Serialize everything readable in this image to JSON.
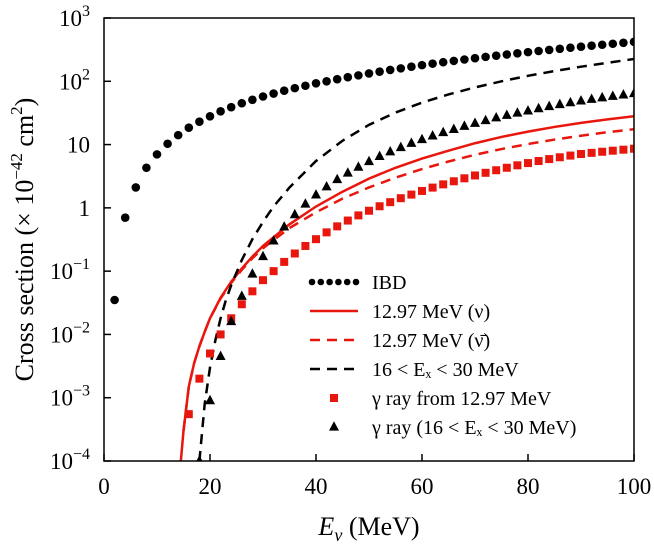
{
  "chart_data": {
    "type": "scatter",
    "xlabel": {
      "var": "E",
      "sub": "ν",
      "unit": " (MeV)"
    },
    "ylabel": {
      "pre": "Cross section (× 10",
      "exp": "−42",
      "mid": " cm",
      "exp2": "2",
      "post": ")"
    },
    "xlim": [
      0,
      100
    ],
    "ylim": [
      0.0001,
      1000
    ],
    "yscale": "log",
    "x_ticks": [
      "0",
      "20",
      "40",
      "60",
      "80",
      "100"
    ],
    "y_ticks": [
      {
        "base": "10",
        "exp": "−4"
      },
      {
        "base": "10",
        "exp": "−3"
      },
      {
        "base": "10",
        "exp": "−2"
      },
      {
        "base": "10",
        "exp": "−1"
      },
      {
        "text": "1"
      },
      {
        "text": "10"
      },
      {
        "base": "10",
        "exp": "2"
      },
      {
        "base": "10",
        "exp": "3"
      }
    ],
    "grid": false,
    "legend_position": "bottom-right",
    "series": [
      {
        "name": "IBD",
        "style": "dots",
        "color": "#000000",
        "x": [
          2,
          4,
          6,
          8,
          10,
          12,
          14,
          16,
          18,
          20,
          22,
          24,
          26,
          28,
          30,
          32,
          34,
          36,
          38,
          40,
          42,
          44,
          46,
          48,
          50,
          52,
          54,
          56,
          58,
          60,
          62,
          64,
          66,
          68,
          70,
          72,
          74,
          76,
          78,
          80,
          82,
          84,
          86,
          88,
          90,
          92,
          94,
          96,
          98,
          100
        ],
        "y": [
          0.035,
          0.7,
          2.1,
          4.3,
          7.0,
          10.3,
          14.1,
          18.5,
          23.0,
          28.0,
          33.5,
          39.0,
          45.0,
          51.0,
          57.5,
          64.0,
          71.0,
          78.0,
          85.0,
          93.0,
          100,
          108,
          116,
          124,
          133,
          142,
          151,
          160,
          170,
          180,
          190,
          200,
          210,
          221,
          232,
          243,
          254,
          265,
          277,
          289,
          301,
          313,
          326,
          339,
          352,
          365,
          378,
          392,
          406,
          420
        ]
      },
      {
        "name": "12.97 MeV (ν)",
        "style": "solid",
        "color": "#e8160c",
        "x": [
          14.5,
          15,
          16,
          17,
          18,
          19,
          20,
          22,
          24,
          26,
          28,
          30,
          35,
          40,
          45,
          50,
          55,
          60,
          65,
          70,
          75,
          80,
          85,
          90,
          95,
          100
        ],
        "y": [
          0.0001,
          0.0003,
          0.0015,
          0.0035,
          0.0065,
          0.011,
          0.018,
          0.038,
          0.068,
          0.11,
          0.17,
          0.25,
          0.55,
          1.05,
          1.8,
          2.9,
          4.3,
          6.0,
          8.0,
          10.5,
          13.2,
          16.0,
          19.0,
          22.0,
          25.0,
          28.0
        ]
      },
      {
        "name": "12.97 MeV (ν̄)",
        "style": "dashed",
        "color": "#e8160c",
        "x": [
          15,
          16,
          17,
          18,
          19,
          20,
          22,
          24,
          26,
          28,
          30,
          35,
          40,
          45,
          50,
          55,
          60,
          65,
          70,
          75,
          80,
          85,
          90,
          95,
          100
        ],
        "y": [
          0.0003,
          0.0015,
          0.0035,
          0.0065,
          0.011,
          0.018,
          0.037,
          0.065,
          0.105,
          0.16,
          0.23,
          0.48,
          0.85,
          1.4,
          2.1,
          3.0,
          4.1,
          5.4,
          6.9,
          8.5,
          10.2,
          12.0,
          13.8,
          15.7,
          17.5
        ]
      },
      {
        "name": "16 < Eₓ < 30 MeV",
        "style": "dashed",
        "color": "#000000",
        "x": [
          18,
          19,
          20,
          21,
          22,
          23,
          24,
          26,
          28,
          30,
          32,
          35,
          40,
          45,
          50,
          55,
          60,
          65,
          70,
          75,
          80,
          85,
          90,
          95,
          100
        ],
        "y": [
          0.0001,
          0.0008,
          0.003,
          0.008,
          0.018,
          0.035,
          0.06,
          0.15,
          0.32,
          0.6,
          1.05,
          2.1,
          5.5,
          11.5,
          20.5,
          32.0,
          46.0,
          62.0,
          80.0,
          100,
          122,
          145,
          170,
          196,
          225
        ]
      },
      {
        "name": "γ ray from 12.97 MeV",
        "style": "squares",
        "color": "#e8160c",
        "x": [
          16,
          18,
          20,
          22,
          24,
          26,
          28,
          30,
          32,
          34,
          36,
          38,
          40,
          42,
          44,
          46,
          48,
          50,
          52,
          54,
          56,
          58,
          60,
          62,
          64,
          66,
          68,
          70,
          72,
          74,
          76,
          78,
          80,
          82,
          84,
          86,
          88,
          90,
          92,
          94,
          96,
          98,
          100
        ],
        "y": [
          0.00055,
          0.002,
          0.005,
          0.01,
          0.018,
          0.03,
          0.048,
          0.072,
          0.1,
          0.14,
          0.19,
          0.25,
          0.32,
          0.41,
          0.51,
          0.63,
          0.76,
          0.9,
          1.06,
          1.23,
          1.42,
          1.62,
          1.85,
          2.09,
          2.35,
          2.63,
          2.93,
          3.25,
          3.58,
          3.93,
          4.3,
          4.7,
          5.1,
          5.5,
          5.9,
          6.3,
          6.7,
          7.1,
          7.4,
          7.7,
          8.0,
          8.3,
          8.6
        ]
      },
      {
        "name": "γ ray (16 < Eₓ < 30 MeV)",
        "style": "triangles",
        "color": "#000000",
        "x": [
          18,
          20,
          22,
          24,
          26,
          28,
          30,
          32,
          34,
          36,
          38,
          40,
          42,
          44,
          46,
          48,
          50,
          52,
          54,
          56,
          58,
          60,
          62,
          64,
          66,
          68,
          70,
          72,
          74,
          76,
          78,
          80,
          82,
          84,
          86,
          88,
          90,
          92,
          94,
          96,
          98,
          100
        ],
        "y": [
          0.0001,
          0.0009,
          0.0045,
          0.016,
          0.04,
          0.09,
          0.17,
          0.3,
          0.5,
          0.78,
          1.15,
          1.6,
          2.15,
          2.8,
          3.55,
          4.4,
          5.4,
          6.5,
          7.7,
          9.0,
          10.5,
          12.0,
          13.7,
          15.5,
          17.4,
          19.5,
          21.7,
          24.0,
          26.5,
          29.0,
          31.5,
          34.0,
          37.0,
          40.0,
          43.0,
          46.0,
          49.0,
          52.0,
          55.0,
          58.0,
          61.0,
          64.0
        ]
      }
    ]
  }
}
